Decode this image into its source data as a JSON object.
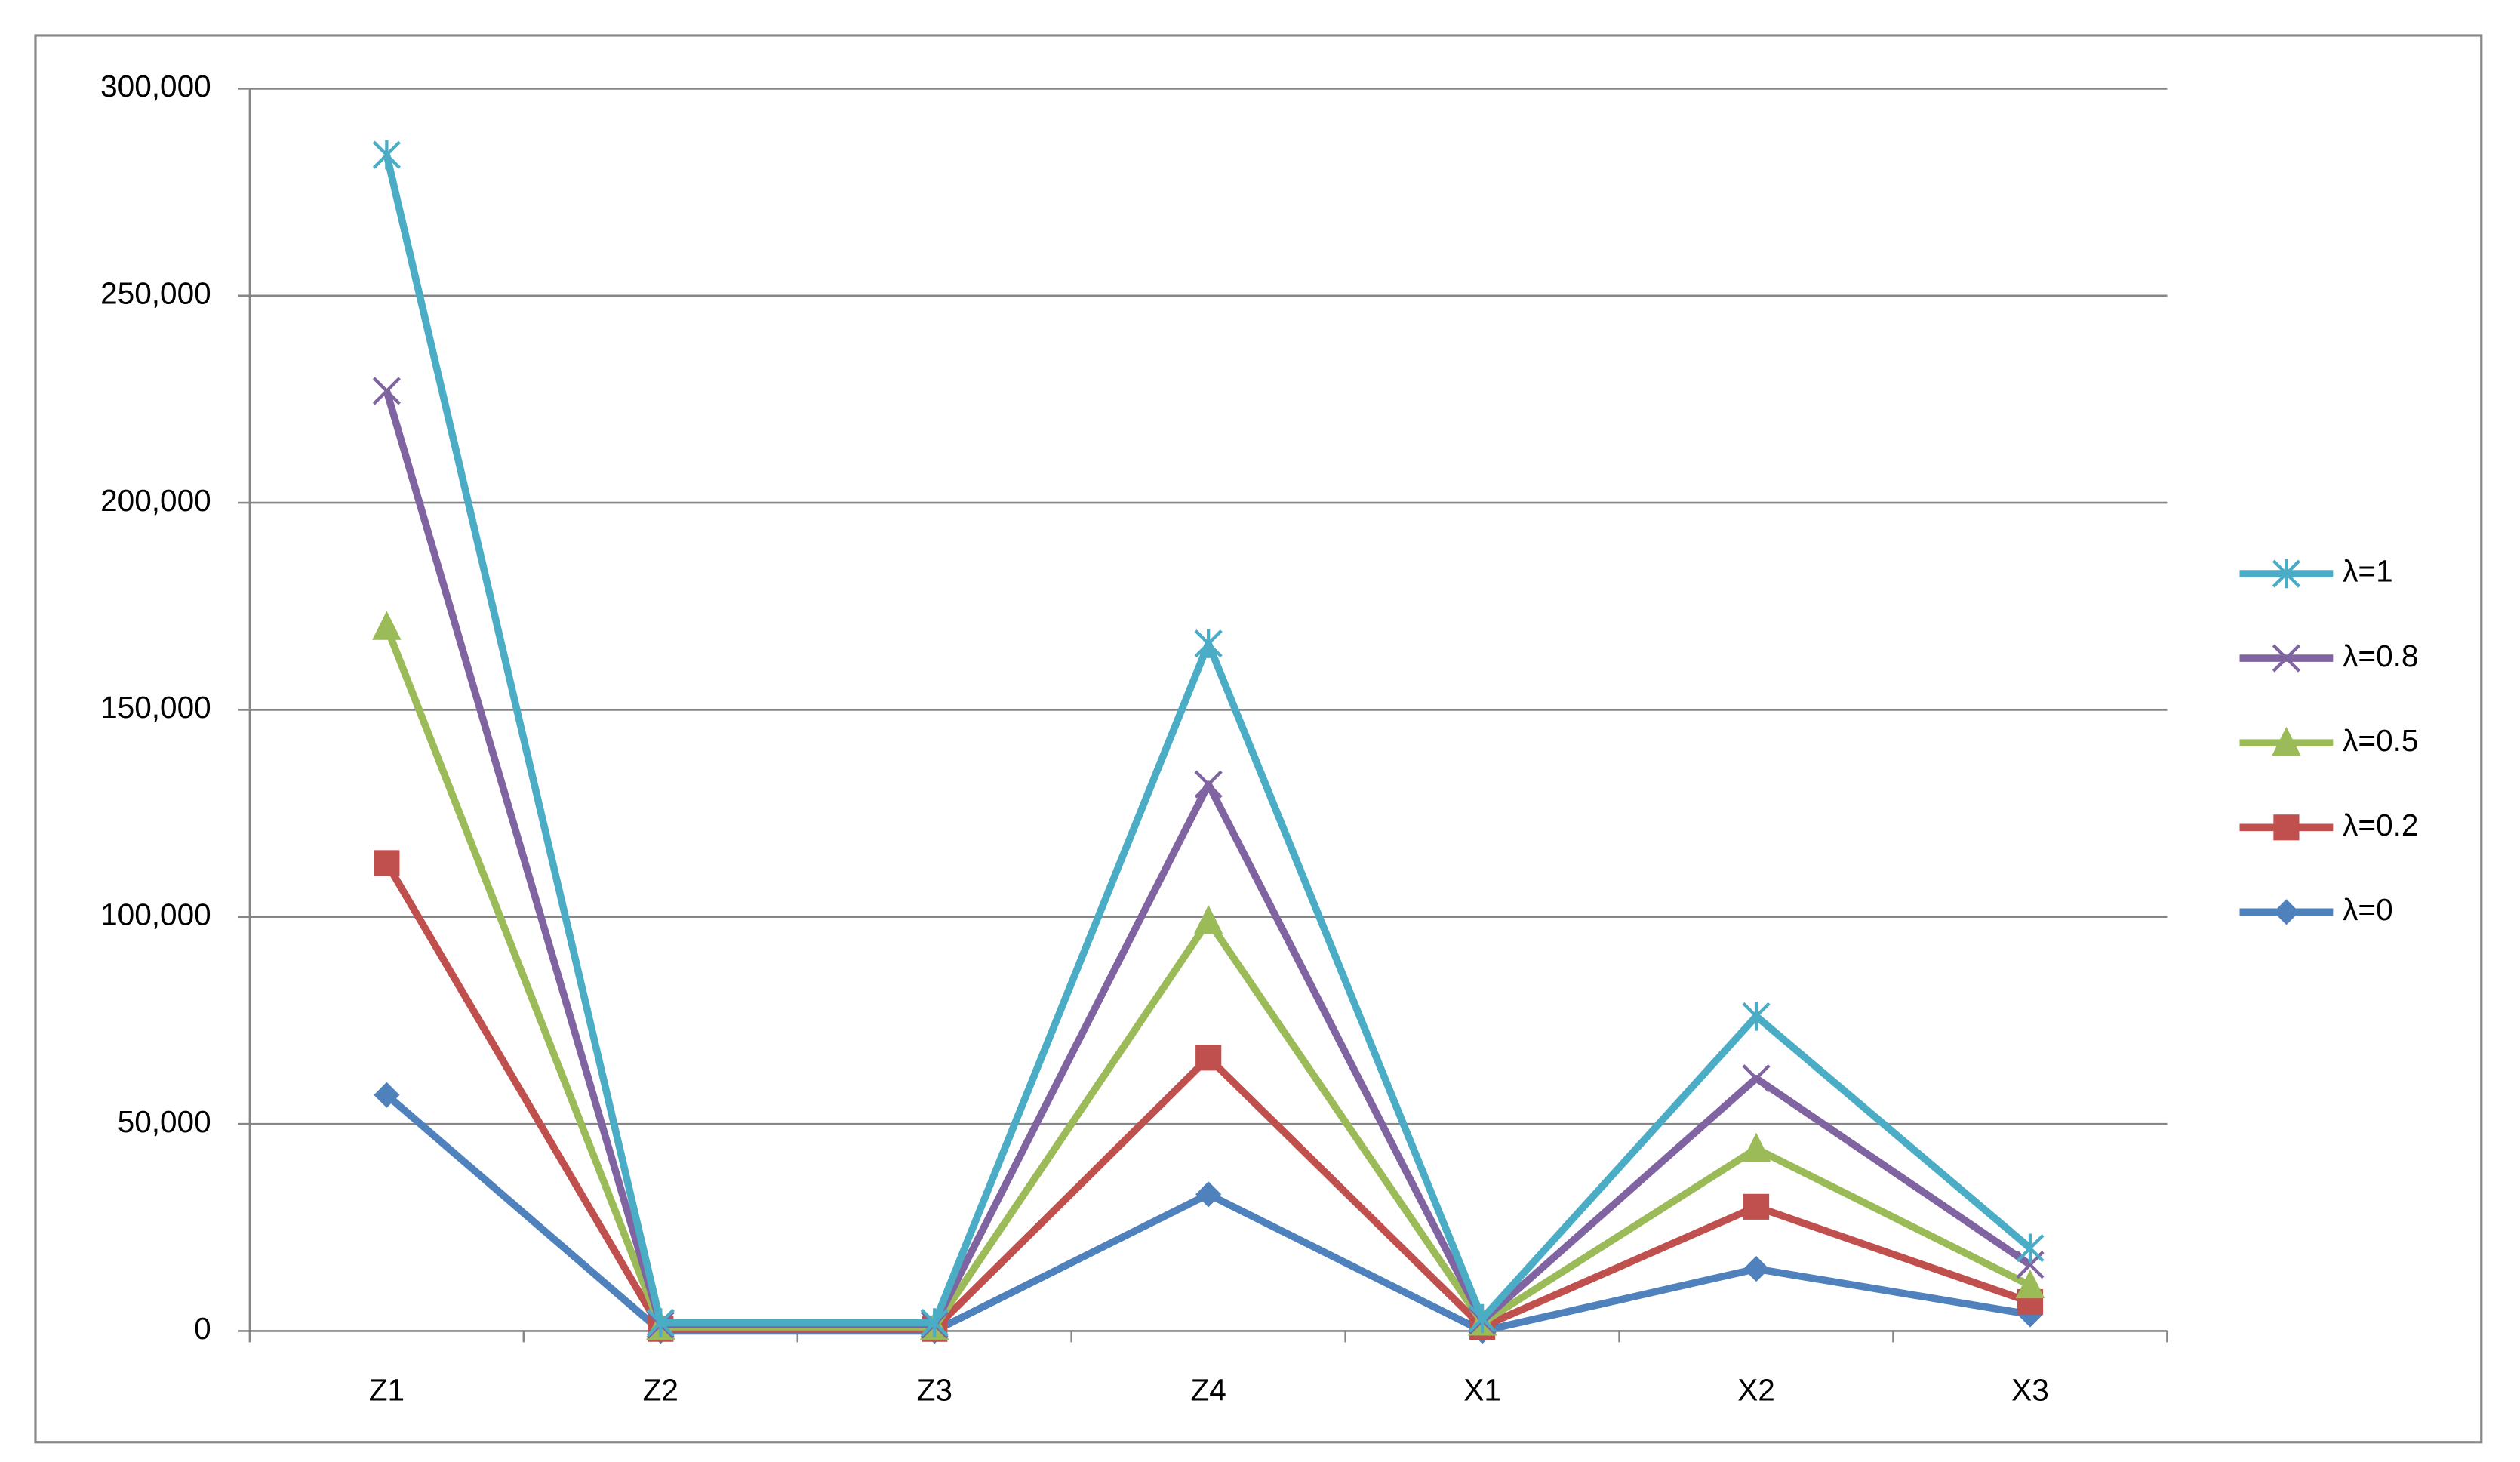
{
  "chart_data": {
    "type": "line",
    "categories": [
      "Z1",
      "Z2",
      "Z3",
      "Z4",
      "X1",
      "X2",
      "X3"
    ],
    "series": [
      {
        "name": "λ=1",
        "color": "#4bacc6",
        "marker": "star",
        "values": [
          284000,
          2000,
          2000,
          166000,
          3000,
          76000,
          20000
        ]
      },
      {
        "name": "λ=0.8",
        "color": "#8064a2",
        "marker": "x",
        "values": [
          227000,
          1500,
          1500,
          132000,
          2500,
          61000,
          16000
        ]
      },
      {
        "name": "λ=0.5",
        "color": "#9bbb59",
        "marker": "triangle",
        "values": [
          170000,
          1000,
          1000,
          99000,
          2000,
          44000,
          11000
        ]
      },
      {
        "name": "λ=0.2",
        "color": "#c0504d",
        "marker": "square",
        "values": [
          113000,
          500,
          500,
          66000,
          1000,
          30000,
          7000
        ]
      },
      {
        "name": "λ=0",
        "color": "#4f81bd",
        "marker": "diamond",
        "values": [
          57000,
          0,
          0,
          33000,
          0,
          15000,
          4000
        ]
      }
    ],
    "ylim": [
      0,
      300000
    ],
    "yticks": [
      0,
      {
        "value": 50000,
        "label": "50,000"
      },
      {
        "value": 100000,
        "label": "100,000"
      },
      {
        "value": 150000,
        "label": "150,000"
      },
      {
        "value": 200000,
        "label": "200,000"
      },
      {
        "value": 250000,
        "label": "250,000"
      },
      {
        "value": 300000,
        "label": "300,000"
      }
    ],
    "grid": true,
    "legend": "right"
  }
}
